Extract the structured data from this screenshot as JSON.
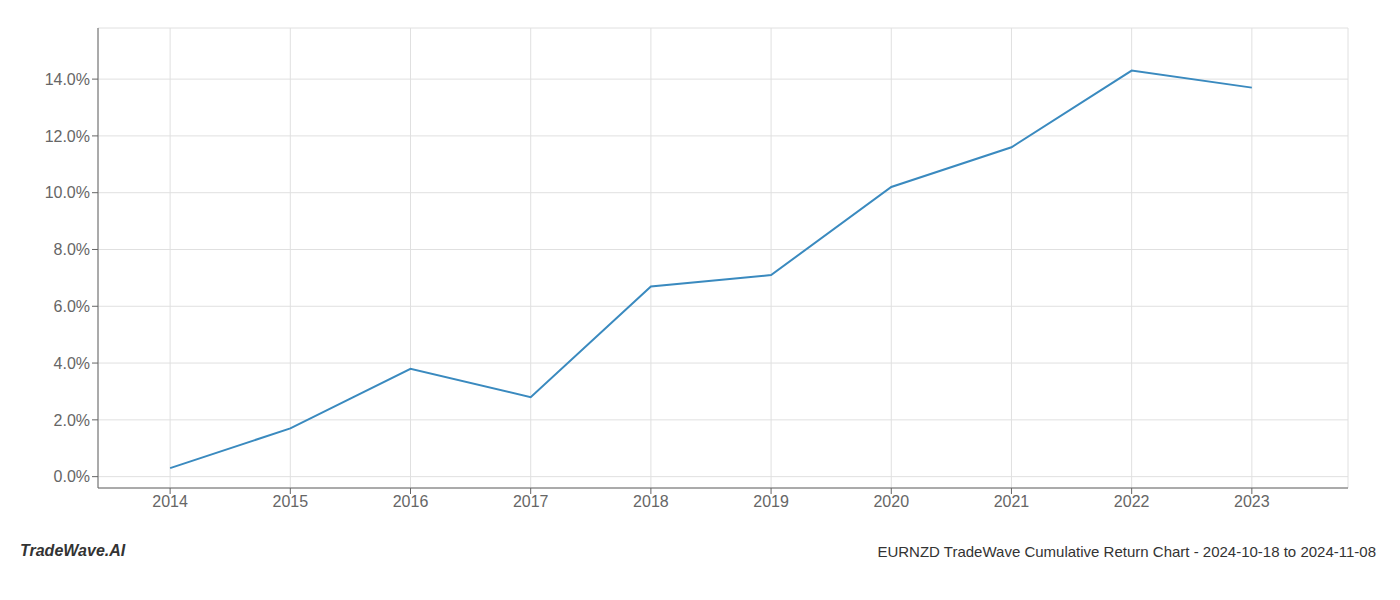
{
  "chart_data": {
    "type": "line",
    "title": "EURNZD TradeWave Cumulative Return Chart - 2024-10-18 to 2024-11-08",
    "annotations": [
      "TradeWave.AI"
    ],
    "x": [
      2014,
      2015,
      2016,
      2017,
      2018,
      2019,
      2020,
      2021,
      2022,
      2023
    ],
    "values": [
      0.003,
      0.017,
      0.038,
      0.028,
      0.067,
      0.071,
      0.102,
      0.116,
      0.143,
      0.137
    ],
    "color": "#3a8abf",
    "xlim": [
      2013.4,
      2023.8
    ],
    "ylim": [
      -0.004,
      0.158
    ],
    "xticks": [
      2014,
      2015,
      2016,
      2017,
      2018,
      2019,
      2020,
      2021,
      2022,
      2023
    ],
    "yticks": [
      {
        "value": 0.0,
        "label": "0.0%"
      },
      {
        "value": 0.02,
        "label": "2.0%"
      },
      {
        "value": 0.04,
        "label": "4.0%"
      },
      {
        "value": 0.06,
        "label": "6.0%"
      },
      {
        "value": 0.08,
        "label": "8.0%"
      },
      {
        "value": 0.1,
        "label": "10.0%"
      },
      {
        "value": 0.12,
        "label": "12.0%"
      },
      {
        "value": 0.14,
        "label": "14.0%"
      }
    ],
    "grid": true
  }
}
